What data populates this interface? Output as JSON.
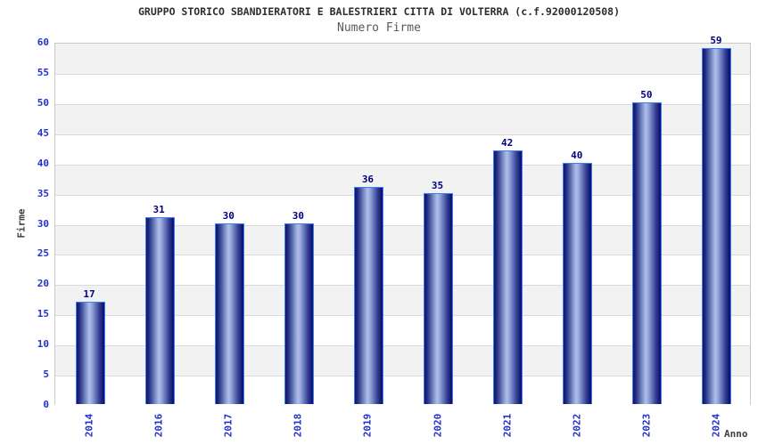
{
  "header": {
    "title": "GRUPPO STORICO SBANDIERATORI E BALESTRIERI CITTA DI VOLTERRA (c.f.92000120508)",
    "subtitle": "Numero Firme"
  },
  "chart_data": {
    "type": "bar",
    "title": "GRUPPO STORICO SBANDIERATORI E BALESTRIERI CITTA DI VOLTERRA (c.f.92000120508)",
    "subtitle": "Numero Firme",
    "categories": [
      "2014",
      "2016",
      "2017",
      "2018",
      "2019",
      "2020",
      "2021",
      "2022",
      "2023",
      "2024"
    ],
    "values": [
      17,
      31,
      30,
      30,
      36,
      35,
      42,
      40,
      50,
      59
    ],
    "value_labels": [
      "17",
      "31",
      "30",
      "30",
      "36",
      "35",
      "42",
      "40",
      "50",
      "59"
    ],
    "xlabel": "Anno",
    "ylabel": "Firme",
    "ylim": [
      0,
      60
    ],
    "ytick_step": 5,
    "ytick_labels": [
      "0",
      "5",
      "10",
      "15",
      "20",
      "25",
      "30",
      "35",
      "40",
      "45",
      "50",
      "55",
      "60"
    ],
    "grid": "horizontal-bands",
    "legend": "none",
    "colors": {
      "title": "#2e2e2e",
      "subtitle": "#5a5a5a",
      "axis_title": "#404040",
      "tick_label": "#2330cc",
      "value_label": "#000080",
      "band_gray": "#f2f2f2",
      "band_white": "#ffffff",
      "grid_line": "#dadada",
      "plot_border": "#c9c9c9",
      "bar_border": "#3c7dfa",
      "bar_dark": "#10156b",
      "bar_mid": "#46579f",
      "bar_light": "#aebde8"
    }
  }
}
